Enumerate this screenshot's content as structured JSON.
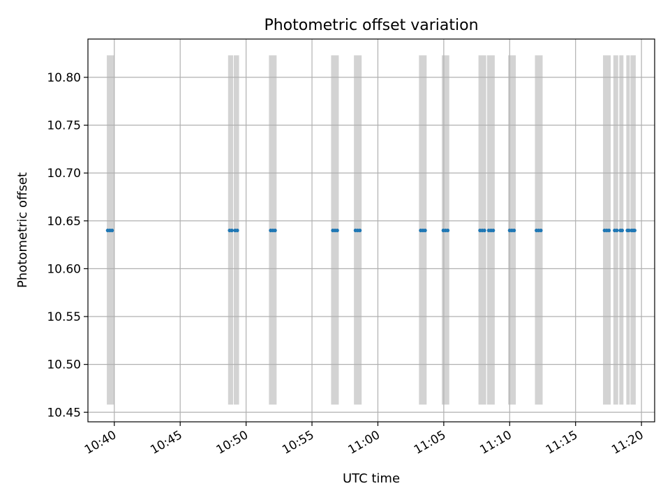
{
  "chart_data": {
    "type": "scatter",
    "title": "Photometric offset variation",
    "xlabel": "UTC time",
    "ylabel": "Photometric offset",
    "grid": true,
    "xlim": [
      "10:38:00",
      "11:21:00"
    ],
    "ylim": [
      10.44,
      10.84
    ],
    "x_ticks": [
      "10:40",
      "10:45",
      "10:50",
      "10:55",
      "11:00",
      "11:05",
      "11:10",
      "11:15",
      "11:20"
    ],
    "y_ticks": [
      "10.45",
      "10.50",
      "10.55",
      "10.60",
      "10.65",
      "10.70",
      "10.75",
      "10.80"
    ],
    "spans": {
      "color": "#d3d3d3",
      "range": [
        10.458,
        10.823
      ],
      "intervals": [
        [
          "10:39:26",
          "10:40:00"
        ],
        [
          "10:48:38",
          "10:49:01"
        ],
        [
          "10:49:04",
          "10:49:28"
        ],
        [
          "10:51:44",
          "10:52:19"
        ],
        [
          "10:56:27",
          "10:57:02"
        ],
        [
          "10:58:11",
          "10:58:46"
        ],
        [
          "11:03:07",
          "11:03:42"
        ],
        [
          "11:04:51",
          "11:05:25"
        ],
        [
          "11:07:38",
          "11:08:13"
        ],
        [
          "11:08:17",
          "11:08:52"
        ],
        [
          "11:09:53",
          "11:10:28"
        ],
        [
          "11:11:55",
          "11:12:30"
        ],
        [
          "11:17:05",
          "11:17:40"
        ],
        [
          "11:17:52",
          "11:18:14"
        ],
        [
          "11:18:19",
          "11:18:38"
        ],
        [
          "11:18:51",
          "11:19:07"
        ],
        [
          "11:19:10",
          "11:19:34"
        ]
      ]
    },
    "series": [
      {
        "color": "#1f77b4",
        "x": [
          "10:39:30",
          "10:39:40",
          "10:39:50",
          "10:48:45",
          "10:48:55",
          "10:49:10",
          "10:49:20",
          "10:51:52",
          "10:52:02",
          "10:52:12",
          "10:56:35",
          "10:56:45",
          "10:56:55",
          "10:58:18",
          "10:58:28",
          "10:58:38",
          "11:03:15",
          "11:03:25",
          "11:03:35",
          "11:04:58",
          "11:05:08",
          "11:05:18",
          "11:07:45",
          "11:07:55",
          "11:08:05",
          "11:08:25",
          "11:08:35",
          "11:08:45",
          "11:10:00",
          "11:10:10",
          "11:10:20",
          "11:12:02",
          "11:12:12",
          "11:12:22",
          "11:17:12",
          "11:17:22",
          "11:17:32",
          "11:17:58",
          "11:18:08",
          "11:18:24",
          "11:18:32",
          "11:18:56",
          "11:19:03",
          "11:19:15",
          "11:19:22",
          "11:19:29"
        ],
        "y": [
          10.64,
          10.64,
          10.64,
          10.64,
          10.64,
          10.64,
          10.64,
          10.64,
          10.64,
          10.64,
          10.64,
          10.64,
          10.64,
          10.64,
          10.64,
          10.64,
          10.64,
          10.64,
          10.64,
          10.64,
          10.64,
          10.64,
          10.64,
          10.64,
          10.64,
          10.64,
          10.64,
          10.64,
          10.64,
          10.64,
          10.64,
          10.64,
          10.64,
          10.64,
          10.64,
          10.64,
          10.64,
          10.64,
          10.64,
          10.64,
          10.64,
          10.64,
          10.64,
          10.64,
          10.64,
          10.64
        ]
      }
    ]
  }
}
